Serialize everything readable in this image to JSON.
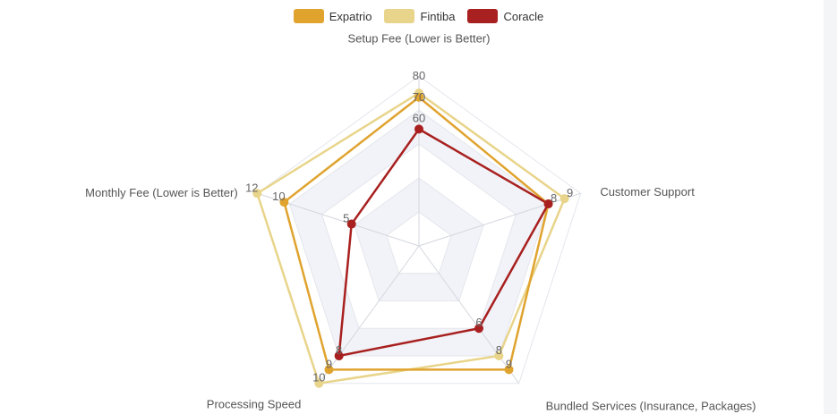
{
  "chart_data": {
    "type": "radar",
    "axes": [
      "Setup Fee (Lower is Better)",
      "Customer Support",
      "Bundled Services (Insurance, Packages)",
      "Processing Speed",
      "Monthly Fee (Lower is Better)"
    ],
    "axis_max": [
      80,
      10,
      10,
      10,
      12
    ],
    "axis_ticks": [
      [
        60,
        70,
        80
      ],
      [
        8,
        9
      ],
      [
        6,
        8,
        9
      ],
      [
        8,
        9,
        10
      ],
      [
        5,
        10,
        12
      ]
    ],
    "series": [
      {
        "name": "Expatrio",
        "color": "#e0a32e",
        "values": [
          70,
          8,
          9,
          9,
          10
        ]
      },
      {
        "name": "Fintiba",
        "color": "#e8d48a",
        "values": [
          72,
          9,
          8,
          10,
          12
        ]
      },
      {
        "name": "Coracle",
        "color": "#a8201f",
        "values": [
          55,
          8,
          6,
          8,
          5
        ]
      }
    ],
    "legend_position": "top",
    "grid": true
  }
}
